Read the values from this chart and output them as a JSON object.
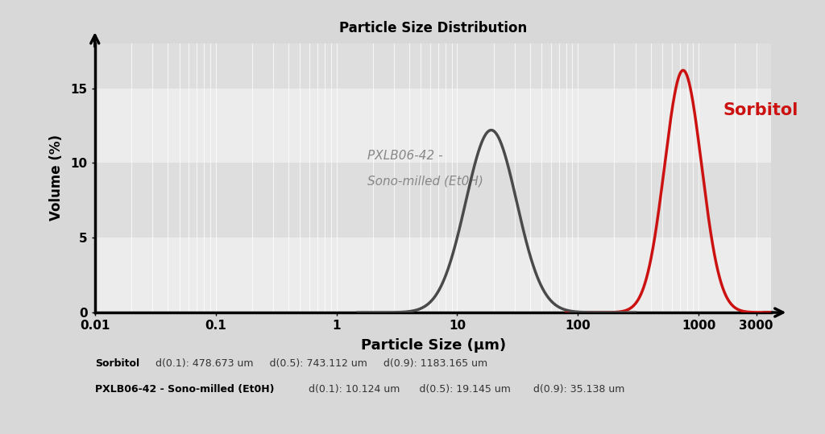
{
  "title": "Particle Size Distribution",
  "xlabel": "Particle Size (μm)",
  "ylabel": "Volume (%)",
  "ylim": [
    0,
    18
  ],
  "yticks": [
    0,
    5,
    10,
    15
  ],
  "xtick_labels": [
    "0.01",
    "0.1",
    "1",
    "10",
    "100",
    "1000",
    "3000"
  ],
  "xtick_vals": [
    0.01,
    0.1,
    1,
    10,
    100,
    1000,
    3000
  ],
  "background_outer": "#d8d8d8",
  "background_band_light": "#ececec",
  "background_band_dark": "#dedede",
  "sorbitol_color": "#cc1111",
  "milled_color": "#4a4a4a",
  "sorbitol_peak": 16.2,
  "milled_peak": 12.2,
  "sorbitol_mean": 743.112,
  "sorbitol_d01": 478.673,
  "sorbitol_d09": 1183.165,
  "milled_mean": 19.145,
  "milled_d01": 10.124,
  "milled_d09": 35.138,
  "label_sorbitol": "Sorbitol",
  "label_milled_line1": "PXLB06-42 -",
  "label_milled_line2": "Sono-milled (Et0H)",
  "footer_sorbitol_bold": "Sorbitol",
  "footer_sorbitol_rest": "   d(0.1): 478.673 um     d(0.5): 743.112 um     d(0.9): 1183.165 um",
  "footer_milled_bold": "PXLB06-42 - Sono-milled (Et0H)",
  "footer_milled_rest": " d(0.1): 10.124 um      d(0.5): 19.145 um       d(0.9): 35.138 um"
}
